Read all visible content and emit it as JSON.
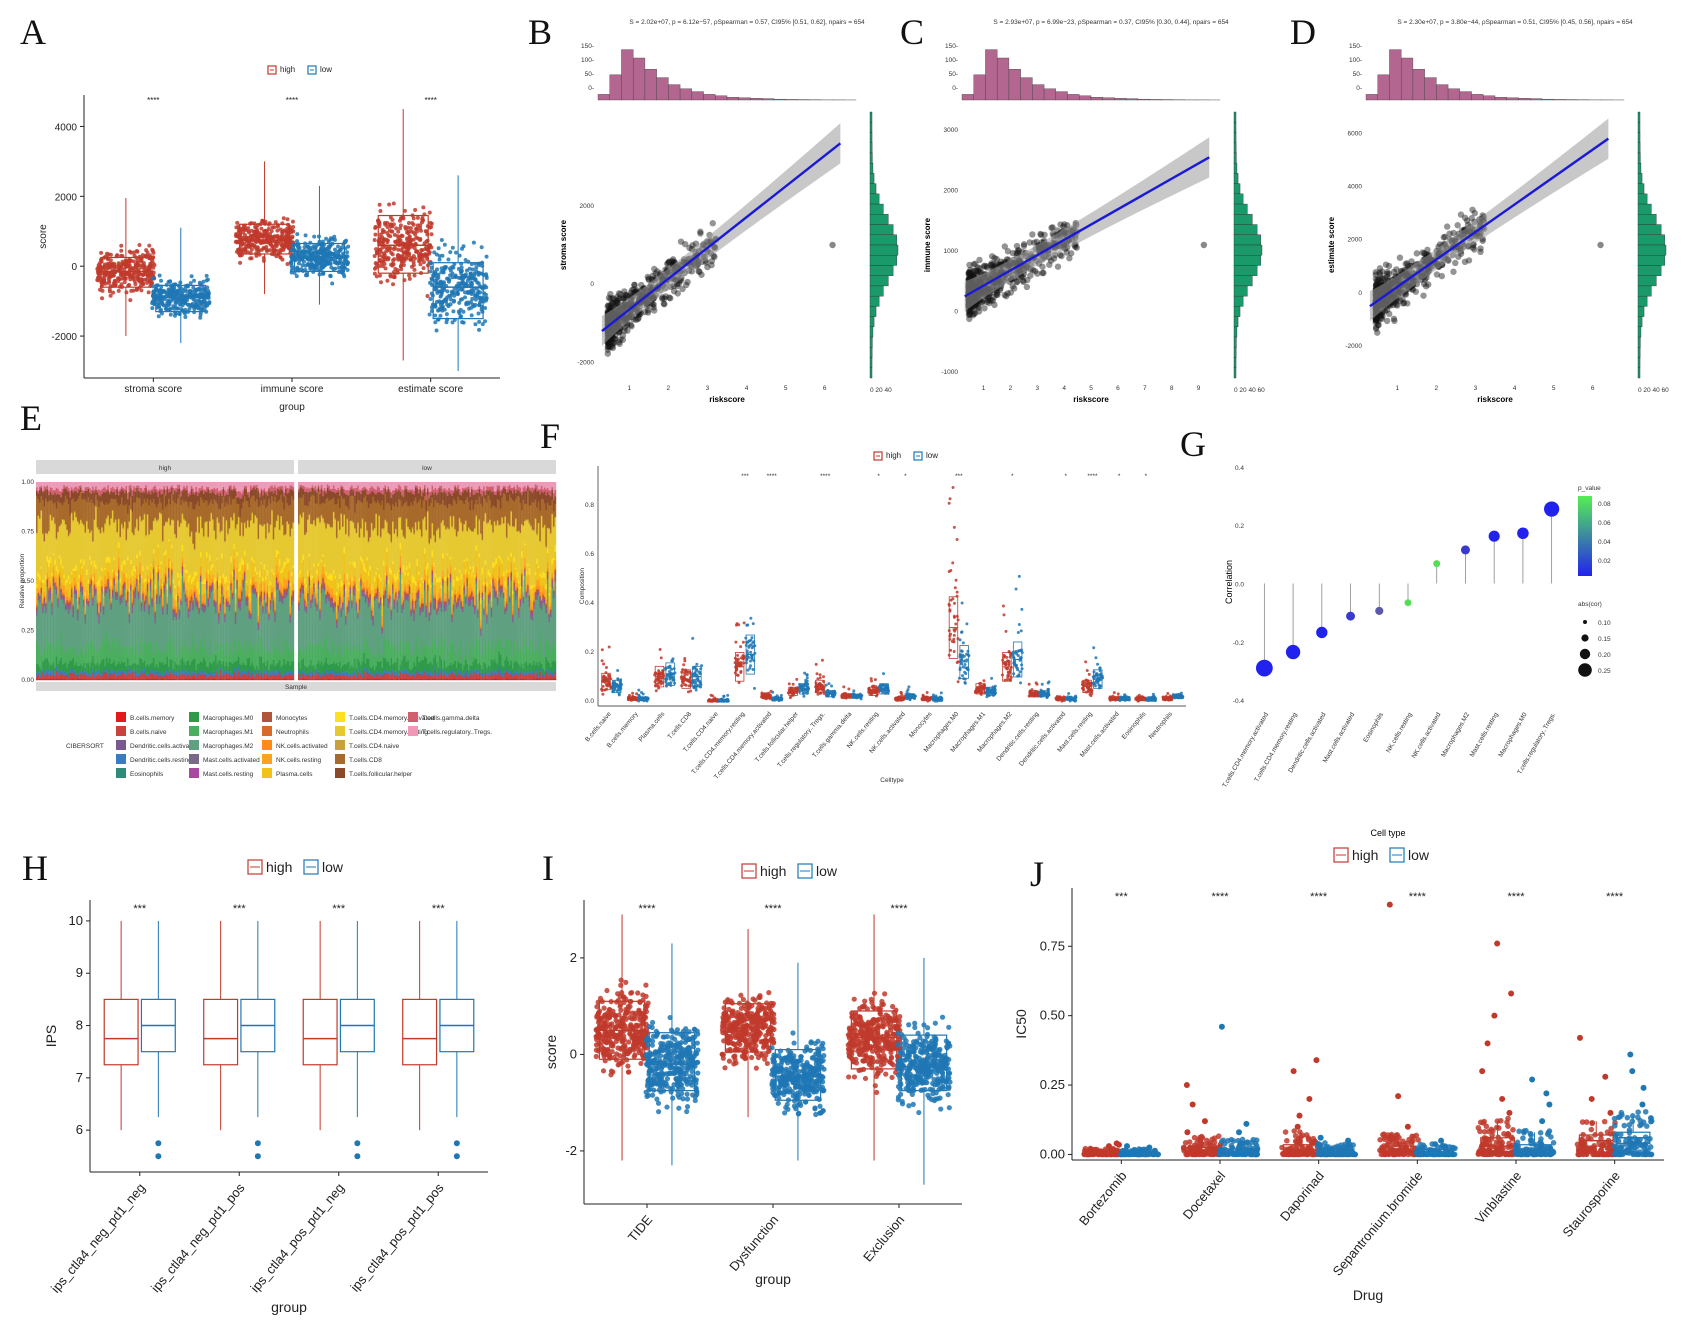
{
  "colors": {
    "high": "#c0392b",
    "low": "#1f77b4",
    "fit": "#1a1ad6",
    "hist_top": "#b3668f",
    "hist_right": "#1a9a6a"
  },
  "legend": {
    "high": "high",
    "low": "low"
  },
  "panels": {
    "A": "A",
    "B": "B",
    "C": "C",
    "D": "D",
    "E": "E",
    "F": "F",
    "G": "G",
    "H": "H",
    "I": "I",
    "J": "J"
  },
  "chart_data": [
    {
      "id": "A",
      "type": "box",
      "ylabel": "score",
      "xlabel": "group",
      "ylim": [
        -3200,
        4900
      ],
      "yticks": [
        -2000,
        0,
        2000,
        4000
      ],
      "yticklabels": [
        "-2000",
        "0",
        "2000",
        "4000"
      ],
      "categories": [
        "stroma score",
        "immune score",
        "estimate score"
      ],
      "significance": [
        "****",
        "****",
        "****"
      ],
      "series": [
        {
          "name": "high",
          "boxes": [
            {
              "q1": -600,
              "med": -150,
              "q3": 250,
              "wlo": -2000,
              "whi": 1950
            },
            {
              "q1": 350,
              "med": 750,
              "q3": 1200,
              "wlo": -800,
              "whi": 3000
            },
            {
              "q1": -200,
              "med": 600,
              "q3": 1450,
              "wlo": -2700,
              "whi": 4500
            }
          ]
        },
        {
          "name": "low",
          "boxes": [
            {
              "q1": -1300,
              "med": -900,
              "q3": -550,
              "wlo": -2200,
              "whi": 1100
            },
            {
              "q1": -150,
              "med": 250,
              "q3": 650,
              "wlo": -1100,
              "whi": 2300
            },
            {
              "q1": -1500,
              "med": -600,
              "q3": 100,
              "wlo": -3000,
              "whi": 2600
            }
          ]
        }
      ]
    },
    {
      "id": "B",
      "type": "scatter",
      "stat": "S = 2.02e+07, p = 6.12e−57, ρSpearman = 0.57, CI95% [0.51, 0.62], npairs = 654",
      "xlabel": "riskscore",
      "ylabel": "stroma score",
      "xlim": [
        0.2,
        6.8
      ],
      "ylim": [
        -2400,
        4400
      ],
      "xticks": [
        1,
        2,
        3,
        4,
        5,
        6
      ],
      "yticks": [
        -2000,
        0,
        2000
      ],
      "yticklabels": [
        "-2000",
        "0",
        "2000"
      ],
      "fit": {
        "x0": 0.3,
        "y0": -1200,
        "x1": 6.4,
        "y1": 3600
      },
      "hist_top_ticks": [
        "150-",
        "100-",
        "50-",
        "0-"
      ],
      "hist_right_ticks": "0 20 40"
    },
    {
      "id": "C",
      "type": "scatter",
      "stat": "S = 2.93e+07, p = 6.99e−23, ρSpearman = 0.37, CI95% [0.30, 0.44], npairs = 654",
      "xlabel": "riskscore",
      "ylabel": "immune score",
      "xlim": [
        0.2,
        9.8
      ],
      "ylim": [
        -1100,
        3300
      ],
      "xticks": [
        1,
        2,
        3,
        4,
        5,
        6,
        7,
        8,
        9
      ],
      "yticks": [
        -1000,
        0,
        1000,
        2000,
        3000
      ],
      "yticklabels": [
        "-1000",
        "0",
        "1000",
        "2000",
        "3000"
      ],
      "fit": {
        "x0": 0.3,
        "y0": 250,
        "x1": 9.4,
        "y1": 2550
      },
      "hist_top_ticks": [
        "150-",
        "100-",
        "50-",
        "0-"
      ],
      "hist_right_ticks": "0 20 40 60"
    },
    {
      "id": "D",
      "type": "scatter",
      "stat": "S = 2.30e+07, p = 3.80e−44, ρSpearman = 0.51, CI95% [0.45, 0.56], npairs = 654",
      "xlabel": "riskscore",
      "ylabel": "estimate score",
      "xlim": [
        0.2,
        6.8
      ],
      "ylim": [
        -3200,
        6800
      ],
      "xticks": [
        1,
        2,
        3,
        4,
        5,
        6
      ],
      "yticks": [
        -2000,
        0,
        2000,
        4000,
        6000
      ],
      "yticklabels": [
        "-2000",
        "0",
        "2000",
        "4000",
        "6000"
      ],
      "fit": {
        "x0": 0.3,
        "y0": -500,
        "x1": 6.4,
        "y1": 5800
      },
      "hist_top_ticks": [
        "150-",
        "100-",
        "50-",
        "0-"
      ],
      "hist_right_ticks": "0 20 40 60"
    },
    {
      "id": "E",
      "type": "stacked_area",
      "strip": [
        "high",
        "low"
      ],
      "xlabel": "Sample",
      "ylabel": "Relative proportion",
      "yticks": [
        "0.00",
        "0.25",
        "0.50",
        "0.75",
        "1.00"
      ],
      "legend_title": "CIBERSORT",
      "celltypes": [
        "B.cells.memory",
        "B.cells.naive",
        "Dendritic.cells.activated",
        "Dendritic.cells.resting",
        "Eosinophils",
        "Macrophages.M0",
        "Macrophages.M1",
        "Macrophages.M2",
        "Mast.cells.activated",
        "Mast.cells.resting",
        "Monocytes",
        "Neutrophils",
        "NK.cells.activated",
        "NK.cells.resting",
        "Plasma.cells",
        "T.cells.CD4.memory.activated",
        "T.cells.CD4.memory.resting",
        "T.cells.CD4.naive",
        "T.cells.CD8",
        "T.cells.follicular.helper",
        "T.cells.gamma.delta",
        "T.cells.regulatory..Tregs."
      ],
      "palette": [
        "#e31a1c",
        "#c9423e",
        "#7a5a8e",
        "#3a7cc0",
        "#2e8b7a",
        "#2f9a4a",
        "#4aae5e",
        "#5fa080",
        "#7a6a8a",
        "#a64aa0",
        "#b0553a",
        "#d86a2a",
        "#ff8a1a",
        "#ffa020",
        "#f0c21a",
        "#ffe020",
        "#e6c830",
        "#c8a040",
        "#a86a2a",
        "#8a4a2a",
        "#d06070",
        "#f098b8"
      ],
      "mean_props": [
        0.005,
        0.02,
        0.005,
        0.01,
        0.005,
        0.04,
        0.08,
        0.22,
        0.02,
        0.01,
        0.01,
        0.005,
        0.01,
        0.03,
        0.06,
        0.02,
        0.22,
        0.005,
        0.12,
        0.05,
        0.02,
        0.03
      ]
    },
    {
      "id": "F",
      "type": "box_jitter",
      "xlabel": "Celltype",
      "ylabel": "Composition",
      "ylim": [
        -0.02,
        0.96
      ],
      "yticks": [
        0,
        0.2,
        0.4,
        0.6,
        0.8
      ],
      "yticklabels": [
        "0.0",
        "0.2",
        "0.4",
        "0.6",
        "0.8"
      ],
      "categories": [
        "B.cells.naive",
        "B.cells.memory",
        "Plasma.cells",
        "T.cells.CD8",
        "T.cells.CD4.naive",
        "T.cells.CD4.memory.resting",
        "T.cells.CD4.memory.activated",
        "T.cells.follicular.helper",
        "T.cells.regulatory..Tregs.",
        "T.cells.gamma.delta",
        "NK.cells.resting",
        "NK.cells.activated",
        "Monocytes",
        "Macrophages.M0",
        "Macrophages.M1",
        "Macrophages.M2",
        "Dendritic.cells.resting",
        "Dendritic.cells.activated",
        "Mast.cells.resting",
        "Mast.cells.activated",
        "Eosinophils",
        "Neutrophils"
      ],
      "significance": [
        "",
        "",
        "",
        "",
        "",
        "***",
        "****",
        "",
        "****",
        "",
        "*",
        "*",
        "",
        "***",
        "",
        "*",
        "",
        "*",
        "****",
        "*",
        "*",
        ""
      ],
      "med_high": [
        0.08,
        0.01,
        0.1,
        0.09,
        0.0,
        0.14,
        0.02,
        0.04,
        0.06,
        0.02,
        0.04,
        0.01,
        0.01,
        0.3,
        0.05,
        0.14,
        0.03,
        0.01,
        0.06,
        0.01,
        0.01,
        0.01
      ],
      "med_low": [
        0.06,
        0.01,
        0.11,
        0.1,
        0.0,
        0.19,
        0.01,
        0.05,
        0.03,
        0.02,
        0.05,
        0.02,
        0.01,
        0.16,
        0.04,
        0.17,
        0.03,
        0.01,
        0.09,
        0.01,
        0.01,
        0.02
      ]
    },
    {
      "id": "G",
      "type": "lollipop",
      "ylabel": "Correlation",
      "xlabel": "Cell type",
      "ylim": [
        -0.42,
        0.43
      ],
      "yticks": [
        -0.4,
        -0.2,
        0,
        0.2,
        0.4
      ],
      "yticklabels": [
        "-0.4",
        "-0.2",
        "0.0",
        "0.2",
        "0.4"
      ],
      "categories": [
        "T.cells.CD4.memory.activated",
        "T.cells.CD4.memory.resting",
        "Dendritic.cells.activated",
        "Mast.cells.activated",
        "Eosinophils",
        "NK.cells.resting",
        "NK.cells.activated",
        "Macrophages.M2",
        "Mast.cells.resting",
        "Macrophages.M0",
        "T.cells.regulatory..Tregs."
      ],
      "values": [
        -0.29,
        -0.235,
        -0.168,
        -0.112,
        -0.094,
        -0.066,
        0.068,
        0.115,
        0.162,
        0.172,
        0.255
      ],
      "p_values": [
        0.0,
        0.0,
        0.0,
        0.01,
        0.02,
        0.09,
        0.09,
        0.01,
        0.0,
        0.0,
        0.0
      ],
      "legend_p_title": "p_value",
      "legend_p_ticks": [
        "0.08",
        "0.06",
        "0.04",
        "0.02"
      ],
      "legend_size_title": "abs(cor)",
      "legend_size_ticks": [
        "0.10",
        "0.15",
        "0.20",
        "0.25"
      ]
    },
    {
      "id": "H",
      "type": "box",
      "ylabel": "IPS",
      "xlabel": "group",
      "ylim": [
        5.2,
        10.4
      ],
      "yticks": [
        6,
        7,
        8,
        9,
        10
      ],
      "yticklabels": [
        "6",
        "7",
        "8",
        "9",
        "10"
      ],
      "categories": [
        "ips_ctla4_neg_pd1_neg",
        "ips_ctla4_neg_pd1_pos",
        "ips_ctla4_pos_pd1_neg",
        "ips_ctla4_pos_pd1_pos"
      ],
      "significance": [
        "***",
        "***",
        "***",
        "***"
      ],
      "series": [
        {
          "name": "high",
          "boxes": [
            {
              "q1": 7.25,
              "med": 7.75,
              "q3": 8.5,
              "wlo": 6,
              "whi": 10
            },
            {
              "q1": 7.25,
              "med": 7.75,
              "q3": 8.5,
              "wlo": 6,
              "whi": 10
            },
            {
              "q1": 7.25,
              "med": 7.75,
              "q3": 8.5,
              "wlo": 6,
              "whi": 10
            },
            {
              "q1": 7.25,
              "med": 7.75,
              "q3": 8.5,
              "wlo": 6,
              "whi": 10
            }
          ]
        },
        {
          "name": "low",
          "boxes": [
            {
              "q1": 7.5,
              "med": 8,
              "q3": 8.5,
              "wlo": 6.25,
              "whi": 10,
              "out": [
                5.5,
                5.75
              ]
            },
            {
              "q1": 7.5,
              "med": 8,
              "q3": 8.5,
              "wlo": 6.25,
              "whi": 10,
              "out": [
                5.5,
                5.75
              ]
            },
            {
              "q1": 7.5,
              "med": 8,
              "q3": 8.5,
              "wlo": 6.25,
              "whi": 10,
              "out": [
                5.5,
                5.75
              ]
            },
            {
              "q1": 7.5,
              "med": 8,
              "q3": 8.5,
              "wlo": 6.25,
              "whi": 10,
              "out": [
                5.5,
                5.75
              ]
            }
          ]
        }
      ]
    },
    {
      "id": "I",
      "type": "box",
      "ylabel": "score",
      "xlabel": "group",
      "ylim": [
        -3.1,
        3.2
      ],
      "yticks": [
        -2,
        0,
        2
      ],
      "yticklabels": [
        "-2",
        "0",
        "2"
      ],
      "categories": [
        "TIDE",
        "Dysfunction",
        "Exclusion"
      ],
      "significance": [
        "****",
        "****",
        "****"
      ],
      "series": [
        {
          "name": "high",
          "boxes": [
            {
              "q1": -0.1,
              "med": 0.5,
              "q3": 1.1,
              "wlo": -2.2,
              "whi": 2.9
            },
            {
              "q1": 0.05,
              "med": 0.55,
              "q3": 1.05,
              "wlo": -1.3,
              "whi": 2.6
            },
            {
              "q1": -0.3,
              "med": 0.35,
              "q3": 0.9,
              "wlo": -2.2,
              "whi": 2.9
            }
          ]
        },
        {
          "name": "low",
          "boxes": [
            {
              "q1": -0.75,
              "med": -0.2,
              "q3": 0.45,
              "wlo": -2.3,
              "whi": 2.3
            },
            {
              "q1": -0.95,
              "med": -0.45,
              "q3": 0.1,
              "wlo": -2.2,
              "whi": 1.9
            },
            {
              "q1": -0.75,
              "med": -0.25,
              "q3": 0.4,
              "wlo": -2.7,
              "whi": 2.0
            }
          ]
        }
      ]
    },
    {
      "id": "J",
      "type": "box",
      "ylabel": "IC50",
      "xlabel": "Drug",
      "ylim": [
        -0.02,
        0.96
      ],
      "yticks": [
        0,
        0.25,
        0.5,
        0.75
      ],
      "yticklabels": [
        "0.00",
        "0.25",
        "0.50",
        "0.75"
      ],
      "categories": [
        "Bortezomib",
        "Docetaxel",
        "Daporinad",
        "Sepantronium.bromide",
        "Vinblastine",
        "Staurosporine"
      ],
      "significance": [
        "***",
        "****",
        "****",
        "****",
        "****",
        "****"
      ],
      "series": [
        {
          "name": "high",
          "boxes": [
            {
              "q1": 0.002,
              "med": 0.006,
              "q3": 0.01,
              "wlo": 0,
              "whi": 0.02,
              "out": [
                0.03,
                0.04,
                0.035
              ]
            },
            {
              "q1": 0.005,
              "med": 0.012,
              "q3": 0.025,
              "wlo": 0,
              "whi": 0.06,
              "out": [
                0.08,
                0.12,
                0.18,
                0.25
              ]
            },
            {
              "q1": 0.006,
              "med": 0.015,
              "q3": 0.035,
              "wlo": 0,
              "whi": 0.08,
              "out": [
                0.1,
                0.14,
                0.2,
                0.3,
                0.34
              ]
            },
            {
              "q1": 0.004,
              "med": 0.012,
              "q3": 0.03,
              "wlo": 0,
              "whi": 0.07,
              "out": [
                0.1,
                0.21,
                0.9
              ]
            },
            {
              "q1": 0.01,
              "med": 0.03,
              "q3": 0.06,
              "wlo": 0,
              "whi": 0.12,
              "out": [
                0.15,
                0.2,
                0.3,
                0.4,
                0.5,
                0.58,
                0.76
              ]
            },
            {
              "q1": 0.03,
              "med": 0.05,
              "q3": 0.07,
              "wlo": 0,
              "whi": 0.12,
              "out": [
                0.15,
                0.2,
                0.28,
                0.42
              ]
            }
          ]
        },
        {
          "name": "low",
          "boxes": [
            {
              "q1": 0.002,
              "med": 0.005,
              "q3": 0.009,
              "wlo": 0,
              "whi": 0.018,
              "out": [
                0.025,
                0.03
              ]
            },
            {
              "q1": 0.004,
              "med": 0.01,
              "q3": 0.02,
              "wlo": 0,
              "whi": 0.05,
              "out": [
                0.08,
                0.11,
                0.46
              ]
            },
            {
              "q1": 0.004,
              "med": 0.01,
              "q3": 0.02,
              "wlo": 0,
              "whi": 0.04,
              "out": [
                0.05,
                0.06
              ]
            },
            {
              "q1": 0.003,
              "med": 0.008,
              "q3": 0.018,
              "wlo": 0,
              "whi": 0.035,
              "out": [
                0.05
              ]
            },
            {
              "q1": 0.006,
              "med": 0.015,
              "q3": 0.035,
              "wlo": 0,
              "whi": 0.08,
              "out": [
                0.12,
                0.18,
                0.22,
                0.27
              ]
            },
            {
              "q1": 0.04,
              "med": 0.06,
              "q3": 0.08,
              "wlo": 0,
              "whi": 0.14,
              "out": [
                0.18,
                0.24,
                0.3,
                0.36
              ]
            }
          ]
        }
      ]
    }
  ]
}
